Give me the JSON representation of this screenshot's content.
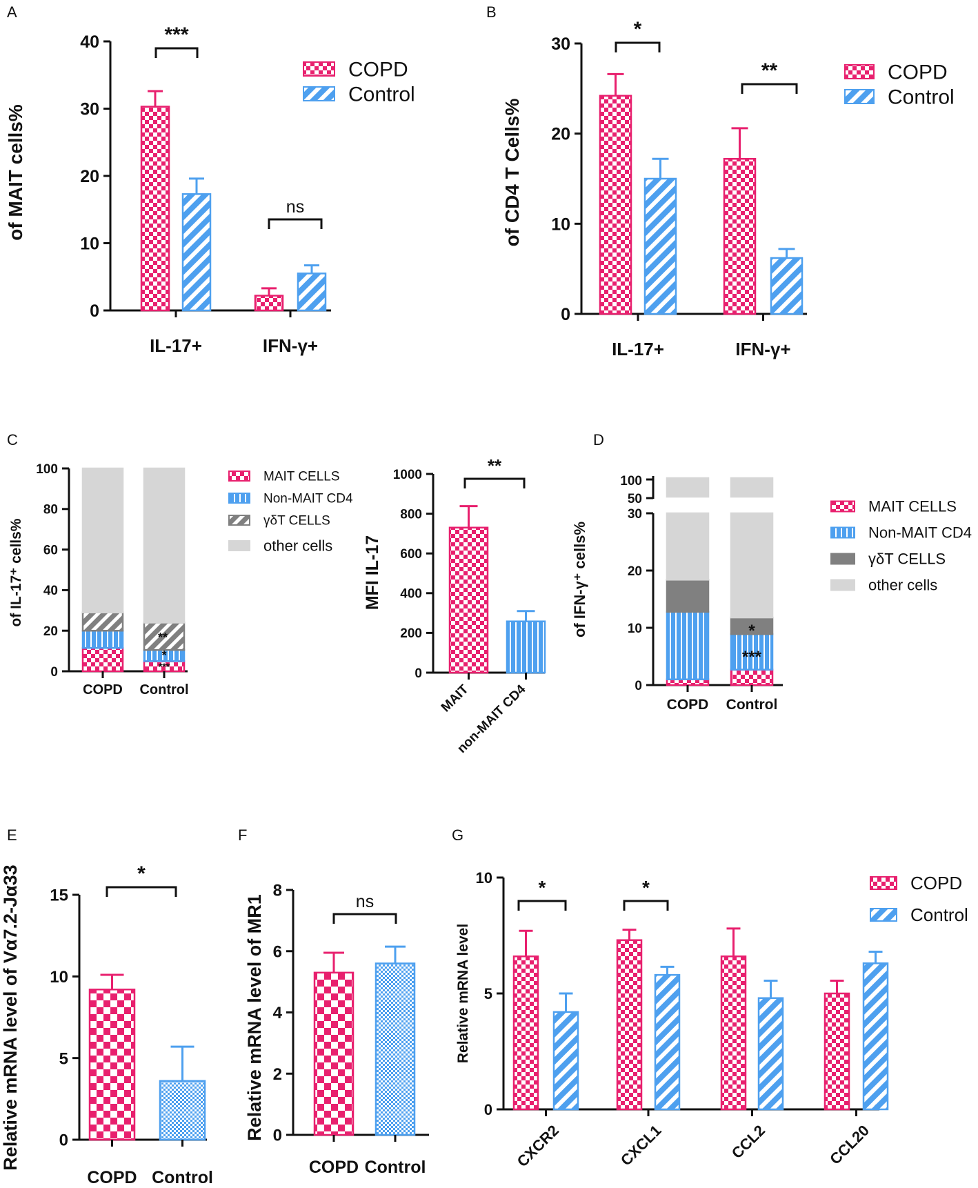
{
  "colors": {
    "copd": "#e8206e",
    "control": "#4ea0ef",
    "gd": "#808080",
    "other": "#d6d6d6"
  },
  "legend_labels": {
    "copd": "COPD",
    "control": "Control",
    "mait": "MAIT CELLS",
    "nonmait": "Non-MAIT CD4",
    "gd": "γδT CELLS",
    "other": "other cells"
  },
  "chart_data": [
    {
      "id": "A",
      "label": "A",
      "type": "bar",
      "ylabel": "of MAIT cells%",
      "categories": [
        "IL-17+",
        "IFN-γ+"
      ],
      "ylim": [
        0,
        40
      ],
      "yticks": [
        0,
        10,
        20,
        30,
        40
      ],
      "series": [
        {
          "name": "COPD",
          "values": [
            30.3,
            2.2
          ],
          "errors": [
            2.3,
            1.1
          ]
        },
        {
          "name": "Control",
          "values": [
            17.3,
            5.5
          ],
          "errors": [
            2.3,
            1.2
          ]
        }
      ],
      "significance": [
        "***",
        "ns"
      ]
    },
    {
      "id": "B",
      "label": "B",
      "type": "bar",
      "ylabel": "of CD4 T Cells%",
      "categories": [
        "IL-17+",
        "IFN-γ+"
      ],
      "ylim": [
        0,
        30
      ],
      "yticks": [
        0,
        10,
        20,
        30
      ],
      "series": [
        {
          "name": "COPD",
          "values": [
            24.2,
            17.2
          ],
          "errors": [
            2.4,
            3.4
          ]
        },
        {
          "name": "Control",
          "values": [
            15.0,
            6.2
          ],
          "errors": [
            2.2,
            1.0
          ]
        }
      ],
      "significance": [
        "*",
        "**"
      ]
    },
    {
      "id": "C_stack",
      "label": "C",
      "type": "bar",
      "stacked": true,
      "ylabel": "of IL-17⁺ cells%",
      "categories": [
        "COPD",
        "Control"
      ],
      "ylim": [
        0,
        100
      ],
      "yticks": [
        0,
        20,
        40,
        60,
        80,
        100
      ],
      "series": [
        {
          "name": "MAIT CELLS",
          "values": [
            11.5,
            5
          ]
        },
        {
          "name": "Non-MAIT CD4",
          "values": [
            8.5,
            5.5
          ]
        },
        {
          "name": "γδT CELLS",
          "values": [
            9,
            13.5
          ]
        },
        {
          "name": "other cells",
          "values": [
            71,
            76
          ]
        }
      ],
      "annotations": [
        "***",
        "*",
        "**"
      ]
    },
    {
      "id": "C_mfi",
      "type": "bar",
      "ylabel": "MFI IL-17",
      "categories": [
        "MAIT",
        "non-MAIT CD4"
      ],
      "ylim": [
        0,
        1000
      ],
      "yticks": [
        0,
        200,
        400,
        600,
        800,
        1000
      ],
      "values": [
        730,
        258
      ],
      "errors": [
        108,
        52
      ],
      "significance": "**"
    },
    {
      "id": "D",
      "label": "D",
      "type": "bar",
      "stacked": true,
      "broken_axis": true,
      "ylabel": "of IFN-γ⁺ cells%",
      "categories": [
        "COPD",
        "Control"
      ],
      "yticks_lower": [
        0,
        10,
        20,
        30
      ],
      "yticks_upper": [
        50,
        100
      ],
      "series": [
        {
          "name": "MAIT CELLS",
          "values": [
            1,
            2.7
          ]
        },
        {
          "name": "Non-MAIT CD4",
          "values": [
            11.8,
            6.2
          ]
        },
        {
          "name": "γδT CELLS",
          "values": [
            5.6,
            2.9
          ]
        },
        {
          "name": "other cells",
          "values": [
            81.6,
            88.2
          ]
        }
      ],
      "annotations": [
        "***",
        "*"
      ]
    },
    {
      "id": "E",
      "label": "E",
      "type": "bar",
      "ylabel": "Relative mRNA level of  Vα7.2-Jα33",
      "categories": [
        "COPD",
        "Control"
      ],
      "ylim": [
        0,
        15
      ],
      "yticks": [
        0,
        5,
        10,
        15
      ],
      "values": [
        9.2,
        3.6
      ],
      "errors": [
        0.9,
        2.1
      ],
      "significance": "*"
    },
    {
      "id": "F",
      "label": "F",
      "type": "bar",
      "ylabel": "Relative mRNA level of  MR1",
      "categories": [
        "COPD",
        "Control"
      ],
      "ylim": [
        0,
        8
      ],
      "yticks": [
        0,
        2,
        4,
        6,
        8
      ],
      "values": [
        5.3,
        5.6
      ],
      "errors": [
        0.65,
        0.55
      ],
      "significance": "ns"
    },
    {
      "id": "G",
      "label": "G",
      "type": "bar",
      "ylabel": "Relative mRNA level",
      "categories": [
        "CXCR2",
        "CXCL1",
        "CCL2",
        "CCL20"
      ],
      "ylim": [
        0,
        10
      ],
      "yticks": [
        0,
        5,
        10
      ],
      "series": [
        {
          "name": "COPD",
          "values": [
            6.6,
            7.3,
            6.6,
            5.0
          ],
          "errors": [
            1.1,
            0.45,
            1.2,
            0.55
          ]
        },
        {
          "name": "Control",
          "values": [
            4.2,
            5.8,
            4.8,
            6.3
          ],
          "errors": [
            0.8,
            0.35,
            0.75,
            0.5
          ]
        }
      ],
      "significance": [
        "*",
        "*"
      ]
    }
  ]
}
